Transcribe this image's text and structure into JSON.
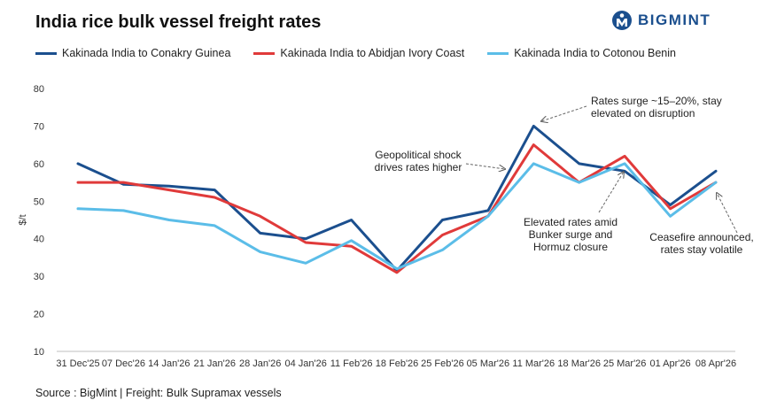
{
  "title": "India rice bulk vessel freight rates",
  "logo_text": "BIGMINT",
  "logo_icon": "bigmint-logo-icon",
  "source": "Source : BigMint | Freight: Bulk Supramax vessels",
  "colors": {
    "conakry": "#1b4f8e",
    "abidjan": "#e03a3a",
    "cotonou": "#5bbde8",
    "brand": "#1b4f8e"
  },
  "chart_data": {
    "type": "line",
    "title": "India rice bulk vessel freight rates",
    "xlabel": "",
    "ylabel": "$/t",
    "ylim": [
      10,
      80
    ],
    "yticks": [
      10,
      20,
      30,
      40,
      50,
      60,
      70,
      80
    ],
    "categories": [
      "31 Dec'25",
      "07 Dec'26",
      "14 Jan'26",
      "21 Jan'26",
      "28 Jan'26",
      "04 Jan'26",
      "11 Feb'26",
      "18 Feb'26",
      "25 Feb'26",
      "05 Mar'26",
      "11 Mar'26",
      "18 Mar'26",
      "25 Mar'26",
      "01 Apr'26",
      "08 Apr'26"
    ],
    "series": [
      {
        "name": "Kakinada India to Conakry Guinea",
        "color": "#1b4f8e",
        "values": [
          60,
          54.5,
          54,
          53,
          41.5,
          40,
          45,
          31.5,
          45,
          47.5,
          70,
          60,
          58,
          49,
          58
        ]
      },
      {
        "name": "Kakinada India to Abidjan Ivory Coast",
        "color": "#e03a3a",
        "values": [
          55,
          55,
          53,
          51,
          46,
          39,
          38,
          31,
          41,
          46,
          65,
          55,
          62,
          48,
          55
        ]
      },
      {
        "name": "Kakinada India to Cotonou Benin",
        "color": "#5bbde8",
        "values": [
          48,
          47.5,
          45,
          43.5,
          36.5,
          33.5,
          39.5,
          32,
          37,
          46,
          60,
          55,
          60,
          46,
          55
        ]
      }
    ],
    "legend_position": "top",
    "grid": false,
    "annotations": [
      {
        "lines": [
          "Rates surge ~15–20%, stay",
          "elevated on disruption"
        ],
        "x_index": 10,
        "y": 70
      },
      {
        "lines": [
          "Geopolitical shock",
          "drives rates higher"
        ],
        "x_index": 9,
        "y": 46
      },
      {
        "lines": [
          "Elevated rates amid",
          "Bunker surge and",
          "Hormuz closure"
        ],
        "x_index": 12,
        "y": 58
      },
      {
        "lines": [
          "Ceasefire announced,",
          "rates stay volatile"
        ],
        "x_index": 14,
        "y": 55
      }
    ]
  }
}
